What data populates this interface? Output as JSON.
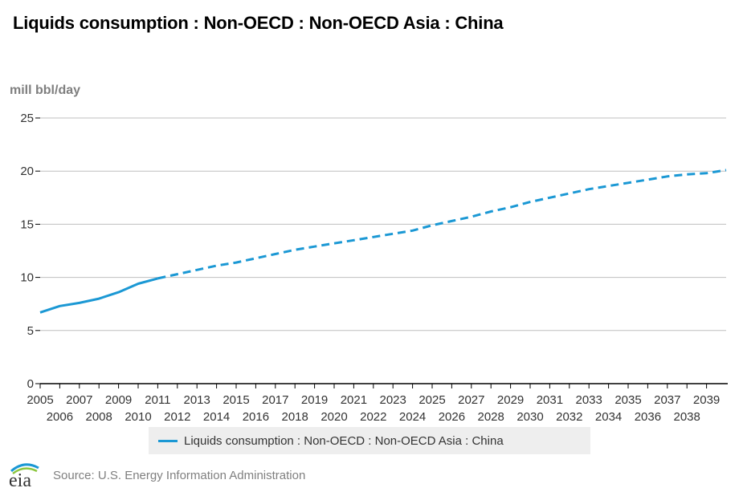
{
  "title": "Liquids consumption : Non-OECD : Non-OECD Asia : China",
  "unit_label": "mill bbl/day",
  "legend_label": "Liquids consumption : Non-OECD : Non-OECD Asia : China",
  "source": "Source: U.S. Energy Information Administration",
  "logo_text": "eia",
  "colors": {
    "series": "#1b98d4",
    "grid": "#bfbfbf",
    "axis": "#000000",
    "legend_bg": "#eeeeee"
  },
  "chart_data": {
    "type": "line",
    "title": "Liquids consumption : Non-OECD : Non-OECD Asia : China",
    "ylabel": "mill bbl/day",
    "xlabel": "",
    "ylim": [
      0,
      25
    ],
    "yticks": [
      0,
      5,
      10,
      15,
      20,
      25
    ],
    "xlim": [
      2005,
      2040
    ],
    "x_tick_labels": [
      "2005",
      "2006",
      "2007",
      "2008",
      "2009",
      "2010",
      "2011",
      "2012",
      "2013",
      "2014",
      "2015",
      "2016",
      "2017",
      "2018",
      "2019",
      "2020",
      "2021",
      "2022",
      "2023",
      "2024",
      "2025",
      "2026",
      "2027",
      "2028",
      "2029",
      "2030",
      "2031",
      "2032",
      "2033",
      "2034",
      "2035",
      "2036",
      "2037",
      "2038",
      "2039"
    ],
    "historical_through": 2011,
    "series": [
      {
        "name": "Liquids consumption : Non-OECD : Non-OECD Asia : China",
        "x": [
          2005,
          2006,
          2007,
          2008,
          2009,
          2010,
          2011,
          2012,
          2013,
          2014,
          2015,
          2016,
          2017,
          2018,
          2019,
          2020,
          2021,
          2022,
          2023,
          2024,
          2025,
          2026,
          2027,
          2028,
          2029,
          2030,
          2031,
          2032,
          2033,
          2034,
          2035,
          2036,
          2037,
          2038,
          2039,
          2040
        ],
        "values": [
          6.7,
          7.3,
          7.6,
          8.0,
          8.6,
          9.4,
          9.9,
          10.3,
          10.7,
          11.1,
          11.4,
          11.8,
          12.2,
          12.6,
          12.9,
          13.2,
          13.5,
          13.8,
          14.1,
          14.4,
          14.9,
          15.3,
          15.7,
          16.2,
          16.6,
          17.1,
          17.5,
          17.9,
          18.3,
          18.6,
          18.9,
          19.2,
          19.5,
          19.7,
          19.8,
          20.1
        ]
      }
    ]
  }
}
